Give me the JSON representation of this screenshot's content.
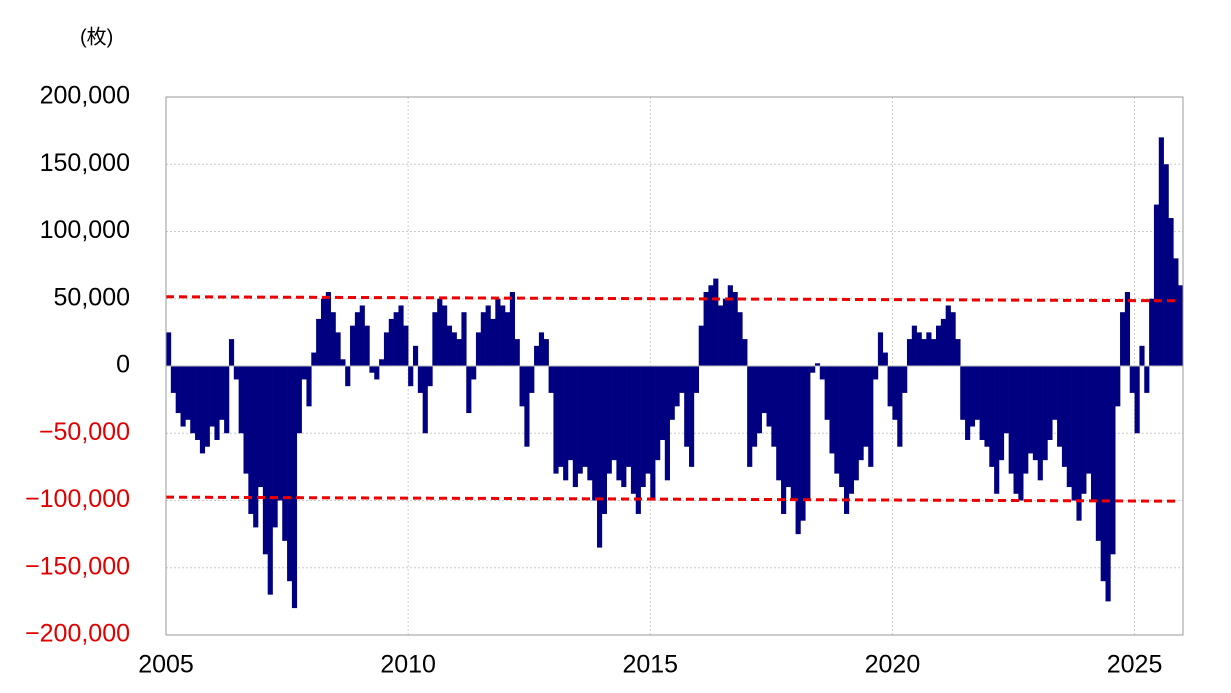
{
  "chart_data": {
    "type": "bar",
    "unit_label": "(枚)",
    "x": [
      2005.0,
      2005.1,
      2005.2,
      2005.3,
      2005.4,
      2005.5,
      2005.6,
      2005.7,
      2005.8,
      2005.9,
      2006.0,
      2006.1,
      2006.2,
      2006.3,
      2006.4,
      2006.5,
      2006.6,
      2006.7,
      2006.8,
      2006.9,
      2007.0,
      2007.1,
      2007.2,
      2007.3,
      2007.4,
      2007.5,
      2007.6,
      2007.7,
      2007.8,
      2007.9,
      2008.0,
      2008.1,
      2008.2,
      2008.3,
      2008.4,
      2008.5,
      2008.6,
      2008.7,
      2008.8,
      2008.9,
      2009.0,
      2009.1,
      2009.2,
      2009.3,
      2009.4,
      2009.5,
      2009.6,
      2009.7,
      2009.8,
      2009.9,
      2010.0,
      2010.1,
      2010.2,
      2010.3,
      2010.4,
      2010.5,
      2010.6,
      2010.7,
      2010.8,
      2010.9,
      2011.0,
      2011.1,
      2011.2,
      2011.3,
      2011.4,
      2011.5,
      2011.6,
      2011.7,
      2011.8,
      2011.9,
      2012.0,
      2012.1,
      2012.2,
      2012.3,
      2012.4,
      2012.5,
      2012.6,
      2012.7,
      2012.8,
      2012.9,
      2013.0,
      2013.1,
      2013.2,
      2013.3,
      2013.4,
      2013.5,
      2013.6,
      2013.7,
      2013.8,
      2013.9,
      2014.0,
      2014.1,
      2014.2,
      2014.3,
      2014.4,
      2014.5,
      2014.6,
      2014.7,
      2014.8,
      2014.9,
      2015.0,
      2015.1,
      2015.2,
      2015.3,
      2015.4,
      2015.5,
      2015.6,
      2015.7,
      2015.8,
      2015.9,
      2016.0,
      2016.1,
      2016.2,
      2016.3,
      2016.4,
      2016.5,
      2016.6,
      2016.7,
      2016.8,
      2016.9,
      2017.0,
      2017.1,
      2017.2,
      2017.3,
      2017.4,
      2017.5,
      2017.6,
      2017.7,
      2017.8,
      2017.9,
      2018.0,
      2018.1,
      2018.2,
      2018.3,
      2018.4,
      2018.5,
      2018.6,
      2018.7,
      2018.8,
      2018.9,
      2019.0,
      2019.1,
      2019.2,
      2019.3,
      2019.4,
      2019.5,
      2019.6,
      2019.7,
      2019.8,
      2019.9,
      2020.0,
      2020.1,
      2020.2,
      2020.3,
      2020.4,
      2020.5,
      2020.6,
      2020.7,
      2020.8,
      2020.9,
      2021.0,
      2021.1,
      2021.2,
      2021.3,
      2021.4,
      2021.5,
      2021.6,
      2021.7,
      2021.8,
      2021.9,
      2022.0,
      2022.1,
      2022.2,
      2022.3,
      2022.4,
      2022.5,
      2022.6,
      2022.7,
      2022.8,
      2022.9,
      2023.0,
      2023.1,
      2023.2,
      2023.3,
      2023.4,
      2023.5,
      2023.6,
      2023.7,
      2023.8,
      2023.9,
      2024.0,
      2024.1,
      2024.2,
      2024.3,
      2024.4,
      2024.5,
      2024.6,
      2024.7,
      2024.8,
      2024.9,
      2025.0,
      2025.1,
      2025.2,
      2025.3,
      2025.4,
      2025.5,
      2025.6,
      2025.7,
      2025.8,
      2025.9
    ],
    "values": [
      25000,
      -20000,
      -35000,
      -45000,
      -40000,
      -50000,
      -55000,
      -65000,
      -60000,
      -45000,
      -55000,
      -40000,
      -50000,
      20000,
      -10000,
      -50000,
      -80000,
      -110000,
      -120000,
      -90000,
      -140000,
      -170000,
      -120000,
      -100000,
      -130000,
      -160000,
      -180000,
      -50000,
      -10000,
      -30000,
      10000,
      35000,
      50000,
      55000,
      40000,
      25000,
      5000,
      -15000,
      30000,
      40000,
      45000,
      30000,
      -5000,
      -10000,
      5000,
      25000,
      35000,
      40000,
      45000,
      30000,
      -15000,
      15000,
      -20000,
      -50000,
      -15000,
      40000,
      50000,
      45000,
      30000,
      25000,
      20000,
      40000,
      -35000,
      -10000,
      25000,
      40000,
      45000,
      35000,
      50000,
      45000,
      40000,
      55000,
      20000,
      -30000,
      -60000,
      -20000,
      15000,
      25000,
      20000,
      -20000,
      -80000,
      -75000,
      -85000,
      -70000,
      -90000,
      -80000,
      -75000,
      -85000,
      -100000,
      -135000,
      -110000,
      -80000,
      -70000,
      -85000,
      -90000,
      -75000,
      -95000,
      -110000,
      -90000,
      -80000,
      -100000,
      -70000,
      -55000,
      -85000,
      -40000,
      -30000,
      -20000,
      -60000,
      -75000,
      -20000,
      30000,
      55000,
      60000,
      65000,
      45000,
      50000,
      60000,
      55000,
      40000,
      20000,
      -75000,
      -60000,
      -50000,
      -35000,
      -45000,
      -60000,
      -85000,
      -110000,
      -90000,
      -100000,
      -125000,
      -115000,
      -100000,
      -5000,
      2000,
      -10000,
      -40000,
      -65000,
      -80000,
      -90000,
      -110000,
      -95000,
      -85000,
      -70000,
      -60000,
      -75000,
      -10000,
      25000,
      10000,
      -30000,
      -40000,
      -60000,
      -20000,
      20000,
      30000,
      25000,
      20000,
      25000,
      20000,
      30000,
      35000,
      45000,
      40000,
      20000,
      -40000,
      -55000,
      -45000,
      -40000,
      -55000,
      -60000,
      -75000,
      -95000,
      -70000,
      -50000,
      -80000,
      -95000,
      -100000,
      -80000,
      -65000,
      -70000,
      -85000,
      -70000,
      -55000,
      -40000,
      -60000,
      -75000,
      -90000,
      -100000,
      -115000,
      -95000,
      -80000,
      -100000,
      -130000,
      -160000,
      -175000,
      -140000,
      -30000,
      40000,
      55000,
      -20000,
      -50000,
      15000,
      -20000,
      50000,
      120000,
      170000,
      150000,
      110000,
      80000,
      60000
    ],
    "color": "#000080",
    "xlim": [
      2005,
      2026
    ],
    "xticks": [
      2005,
      2010,
      2015,
      2020,
      2025
    ],
    "ylim": [
      -200000,
      200000
    ],
    "yticks": [
      {
        "value": 200000,
        "label": "200,000"
      },
      {
        "value": 150000,
        "label": "150,000"
      },
      {
        "value": 100000,
        "label": "100,000"
      },
      {
        "value": 50000,
        "label": "50,000"
      },
      0,
      {
        "value": -50000,
        "label": "−50,000"
      },
      {
        "value": -100000,
        "label": "−100,000"
      },
      {
        "value": -150000,
        "label": "−150,000"
      },
      {
        "value": -200000,
        "label": "−200,000"
      }
    ],
    "negative_tick_color": "#e00000",
    "grid": true,
    "reference_lines": [
      {
        "x": [
          2005,
          2026
        ],
        "y": [
          51500,
          48500
        ]
      },
      {
        "x": [
          2005,
          2026
        ],
        "y": [
          -97500,
          -100500
        ]
      }
    ],
    "reference_color": "#ee0000"
  }
}
